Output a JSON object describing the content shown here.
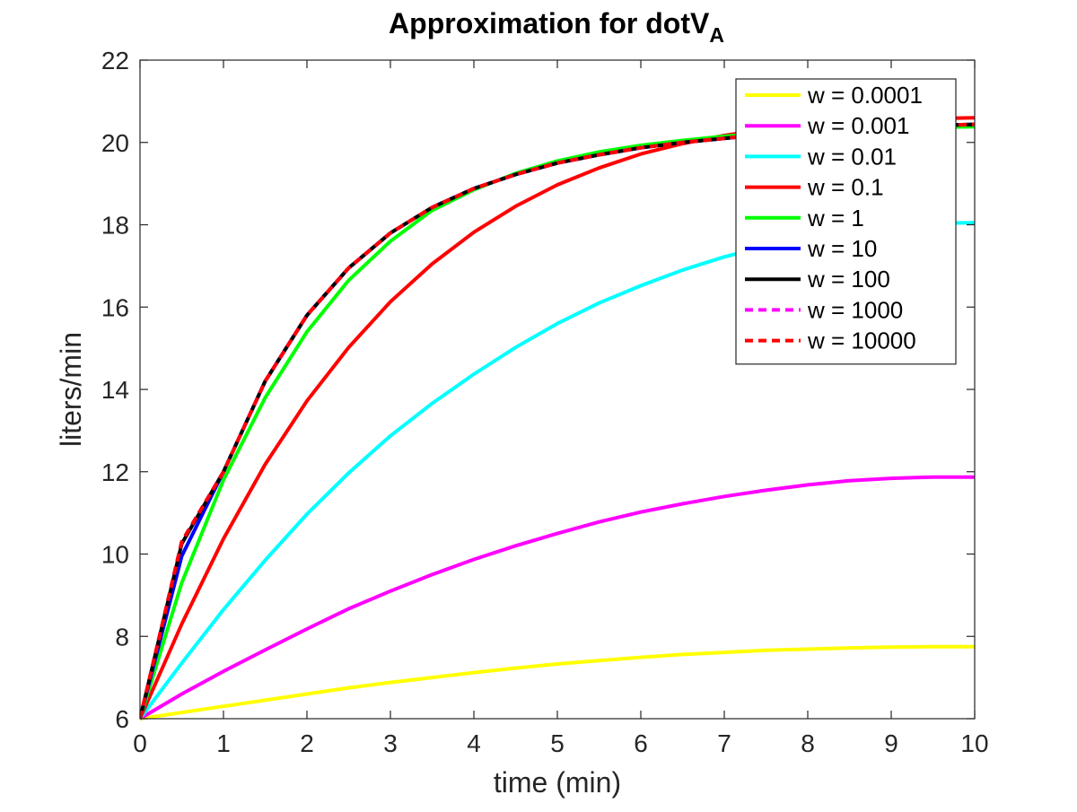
{
  "chart_data": {
    "type": "line",
    "title": "Approximation for dotV",
    "title_subscript": "A",
    "xlabel": "time (min)",
    "ylabel": "liters/min",
    "xlim": [
      0,
      10
    ],
    "ylim": [
      6,
      22
    ],
    "x_ticks": [
      0,
      1,
      2,
      3,
      4,
      5,
      6,
      7,
      8,
      9,
      10
    ],
    "y_ticks": [
      6,
      8,
      10,
      12,
      14,
      16,
      18,
      20,
      22
    ],
    "grid": false,
    "legend_position": "top-right",
    "x": [
      0,
      0.5,
      1,
      1.5,
      2,
      2.5,
      3,
      3.5,
      4,
      4.5,
      5,
      5.5,
      6,
      6.5,
      7,
      7.5,
      8,
      8.5,
      9,
      9.5,
      10
    ],
    "series": [
      {
        "name": "w = 0.0001",
        "color": "#ffff00",
        "style": "solid",
        "values": [
          6.0,
          6.15,
          6.3,
          6.45,
          6.6,
          6.75,
          6.88,
          7.0,
          7.12,
          7.23,
          7.33,
          7.41,
          7.49,
          7.56,
          7.61,
          7.66,
          7.69,
          7.72,
          7.74,
          7.75,
          7.75
        ]
      },
      {
        "name": "w = 0.001",
        "color": "#ff00ff",
        "style": "solid",
        "values": [
          6.0,
          6.6,
          7.15,
          7.67,
          8.18,
          8.67,
          9.1,
          9.5,
          9.87,
          10.2,
          10.5,
          10.78,
          11.02,
          11.22,
          11.4,
          11.55,
          11.68,
          11.78,
          11.84,
          11.87,
          11.87
        ]
      },
      {
        "name": "w = 0.01",
        "color": "#00ffff",
        "style": "solid",
        "values": [
          6.0,
          7.35,
          8.65,
          9.85,
          10.97,
          11.97,
          12.87,
          13.66,
          14.37,
          15.02,
          15.6,
          16.1,
          16.52,
          16.9,
          17.22,
          17.48,
          17.7,
          17.87,
          17.98,
          18.04,
          18.05
        ]
      },
      {
        "name": "w = 0.1",
        "color": "#ff0000",
        "style": "solid",
        "values": [
          6.0,
          8.3,
          10.37,
          12.18,
          13.72,
          15.02,
          16.13,
          17.05,
          17.82,
          18.45,
          18.97,
          19.38,
          19.72,
          19.97,
          20.17,
          20.32,
          20.42,
          20.5,
          20.55,
          20.58,
          20.6
        ]
      },
      {
        "name": "w = 1",
        "color": "#00ff00",
        "style": "solid",
        "values": [
          6.0,
          9.3,
          11.8,
          13.8,
          15.4,
          16.65,
          17.6,
          18.35,
          18.85,
          19.25,
          19.55,
          19.77,
          19.93,
          20.05,
          20.15,
          20.22,
          20.28,
          20.32,
          20.35,
          20.37,
          20.38
        ]
      },
      {
        "name": "w = 10",
        "color": "#0000ff",
        "style": "solid",
        "values": [
          6.0,
          9.95,
          12.0,
          14.2,
          15.8,
          16.95,
          17.8,
          18.42,
          18.88,
          19.22,
          19.5,
          19.7,
          19.87,
          20.0,
          20.1,
          20.2,
          20.27,
          20.33,
          20.38,
          20.41,
          20.44
        ]
      },
      {
        "name": "w = 100",
        "color": "#000000",
        "style": "solid",
        "values": [
          6.0,
          10.25,
          12.0,
          14.2,
          15.8,
          16.95,
          17.8,
          18.42,
          18.88,
          19.22,
          19.5,
          19.7,
          19.87,
          20.0,
          20.1,
          20.2,
          20.27,
          20.33,
          20.38,
          20.41,
          20.44
        ]
      },
      {
        "name": "w = 1000",
        "color": "#ff00ff",
        "style": "dashed",
        "values": [
          6.0,
          10.3,
          12.0,
          14.2,
          15.8,
          16.95,
          17.8,
          18.42,
          18.88,
          19.22,
          19.5,
          19.7,
          19.87,
          20.0,
          20.1,
          20.2,
          20.27,
          20.33,
          20.38,
          20.41,
          20.44
        ]
      },
      {
        "name": "w = 10000",
        "color": "#ff0000",
        "style": "dashed",
        "values": [
          6.0,
          10.3,
          12.0,
          14.2,
          15.8,
          16.95,
          17.8,
          18.42,
          18.88,
          19.22,
          19.5,
          19.7,
          19.87,
          20.0,
          20.1,
          20.2,
          20.27,
          20.33,
          20.38,
          20.41,
          20.44
        ]
      }
    ]
  }
}
